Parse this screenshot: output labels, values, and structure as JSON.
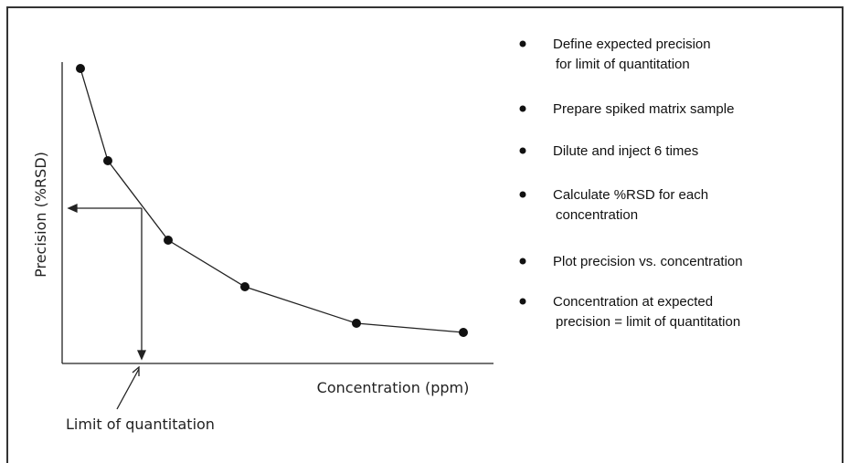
{
  "diagram": {
    "y_axis_label": "Precision (%RSD)",
    "x_axis_label": "Concentration (ppm)",
    "annotation": "Limit of quantitation",
    "steps": [
      [
        "Define expected precision",
        "for limit of quantitation"
      ],
      [
        "Prepare spiked matrix sample"
      ],
      [
        "Dilute and inject 6 times"
      ],
      [
        "Calculate %RSD for each",
        "concentration"
      ],
      [
        "Plot precision vs. concentration"
      ],
      [
        "Concentration at expected",
        "precision = limit of quantitation"
      ]
    ]
  }
}
